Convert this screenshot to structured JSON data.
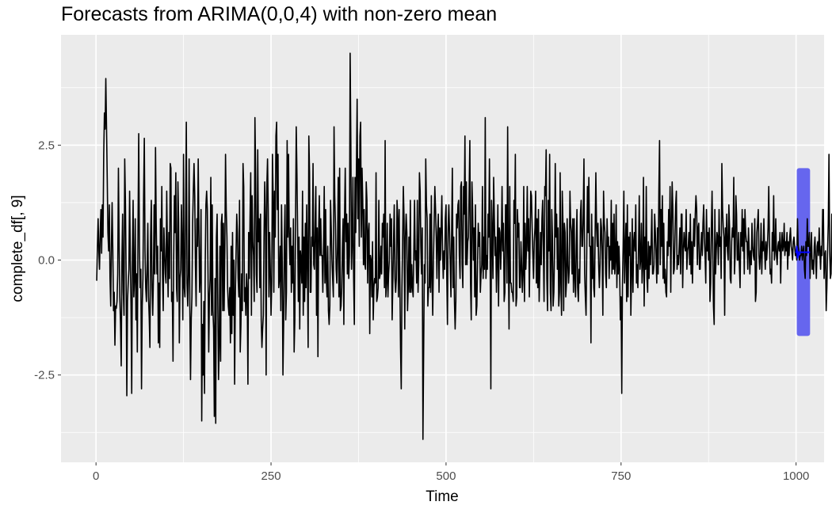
{
  "chart_data": {
    "type": "line",
    "title": "Forecasts from ARIMA(0,0,4) with non-zero mean",
    "xlabel": "Time",
    "ylabel": "complete_df[, 9]",
    "xlim": [
      -50,
      1040
    ],
    "ylim": [
      -4.4,
      4.9
    ],
    "x_ticks": [
      0,
      250,
      500,
      750,
      1000
    ],
    "x_tick_labels": [
      "0",
      "250",
      "500",
      "750",
      "1000"
    ],
    "y_ticks": [
      -2.5,
      0.0,
      2.5
    ],
    "y_tick_labels": [
      "-2.5",
      "0.0",
      "2.5"
    ],
    "grid": true,
    "legend": "none",
    "series": [
      {
        "role": "observed",
        "color": "#000000",
        "x_start": 1,
        "x_step": 1,
        "values": [
          -0.45,
          0.3,
          0.9,
          0.2,
          -0.2,
          0.6,
          1.1,
          0.15,
          1.2,
          0.5,
          2.3,
          3.2,
          2.85,
          3.95,
          2.9,
          1.8,
          0.6,
          0.2,
          1.2,
          -0.4,
          -1.0,
          0.3,
          1.25,
          0.2,
          -1.1,
          -0.7,
          -1.85,
          -1.0,
          -1.05,
          -0.9,
          -0.3,
          2.0,
          0.4,
          -0.8,
          -1.4,
          -2.3,
          0.0,
          1.0,
          -0.7,
          -1.2,
          2.2,
          1.3,
          -0.3,
          -2.95,
          -0.9,
          -0.5,
          -0.2,
          1.5,
          0.0,
          -1.0,
          -2.9,
          0.1,
          1.3,
          -0.8,
          -0.4,
          0.9,
          -1.3,
          -0.3,
          -2.0,
          0.7,
          2.75,
          0.3,
          -0.6,
          -0.2,
          -2.8,
          -1.0,
          -0.4,
          1.4,
          2.65,
          0.2,
          -0.6,
          -0.9,
          -0.2,
          0.8,
          -0.8,
          -1.25,
          -1.9,
          0.5,
          1.3,
          -0.6,
          -1.2,
          -0.4,
          1.2,
          -0.3,
          2.45,
          0.8,
          -0.3,
          0.3,
          -1.8,
          -0.5,
          -1.9,
          0.9,
          0.2,
          1.6,
          -0.3,
          -1.1,
          0.7,
          0.2,
          -0.3,
          -0.5,
          1.5,
          0.2,
          -0.8,
          0.6,
          -0.4,
          2.1,
          2.0,
          -0.9,
          -0.7,
          -2.2,
          0.1,
          1.4,
          0.6,
          1.9,
          -0.6,
          -0.9,
          1.7,
          0.9,
          -1.8,
          -0.4,
          -0.2,
          1.2,
          0.3,
          -1.3,
          2.3,
          -0.6,
          -0.8,
          0.9,
          3.0,
          -0.5,
          -1.0,
          -0.3,
          2.2,
          -1.0,
          -2.6,
          -1.3,
          -0.8,
          0.8,
          1.5,
          2.1,
          1.4,
          -0.1,
          -1.0,
          0.9,
          0.3,
          2.2,
          0.6,
          -0.7,
          -0.3,
          1.1,
          -3.5,
          -1.4,
          -2.5,
          -0.9,
          -2.9,
          -0.1,
          1.2,
          1.5,
          1.1,
          -0.3,
          -2.0,
          -0.8,
          -0.4,
          1.8,
          -1.2,
          1.2,
          -1.1,
          -1.5,
          -3.4,
          -0.4,
          -3.55,
          0.5,
          1.0,
          -1.0,
          -2.6,
          -1.9,
          0.3,
          -2.2,
          0.8,
          1.0,
          -1.1,
          0.8,
          -1.1,
          0.2,
          2.3,
          1.1,
          0.5,
          -0.6,
          -1.0,
          -1.2,
          -0.6,
          -1.8,
          0.3,
          -1.6,
          0.6,
          -1.2,
          0.0,
          -2.7,
          -0.8,
          0.1,
          1.0,
          0.6,
          -0.4,
          -0.8,
          1.3,
          -2.0,
          -1.4,
          -0.3,
          -1.1,
          2.1,
          1.6,
          -0.9,
          -0.6,
          -1.2,
          -0.3,
          -0.7,
          -2.7,
          0.6,
          -0.4,
          0.9,
          1.9,
          -1.2,
          1.4,
          0.4,
          0.1,
          -0.9,
          3.1,
          1.9,
          -0.3,
          -0.7,
          2.4,
          0.4,
          0.9,
          -0.6,
          1.0,
          -1.3,
          -1.9,
          -1.5,
          -1.2,
          0.5,
          1.7,
          0.9,
          -2.5,
          1.6,
          2.2,
          1.1,
          -0.8,
          0.6,
          -0.2,
          -1.2,
          -0.5,
          2.3,
          1.4,
          -0.7,
          1.5,
          0.5,
          2.7,
          3.0,
          1.1,
          2.3,
          -0.6,
          -0.4,
          0.3,
          -1.1,
          1.2,
          0.0,
          -2.5,
          -1.4,
          0.4,
          1.2,
          -1.3,
          -0.7,
          2.6,
          0.5,
          2.3,
          0.6,
          -0.1,
          0.7,
          -0.7,
          0.3,
          -0.5,
          0.9,
          -2.0,
          -1.3,
          0.8,
          2.9,
          1.9,
          0.6,
          -0.9,
          0.5,
          -1.5,
          0.2,
          0.0,
          -0.5,
          1.5,
          -1.2,
          0.5,
          -0.9,
          0.8,
          -0.6,
          1.2,
          -0.1,
          -1.9,
          2.7,
          1.9,
          -0.7,
          -0.7,
          0.5,
          0.3,
          2.1,
          -0.1,
          -0.2,
          0.8,
          1.6,
          -1.2,
          0.7,
          -2.1,
          0.6,
          1.4,
          0.1,
          0.9,
          0.1,
          0.1,
          -0.7,
          0.3,
          1.6,
          -0.5,
          1.1,
          -0.4,
          -0.8,
          0.3,
          -1.1,
          -1.4,
          -1.0,
          1.3,
          0.7,
          0.0,
          -0.4,
          -0.8,
          2.9,
          1.4,
          0.8,
          -0.2,
          -0.5,
          0.3,
          1.8,
          -0.8,
          2.0,
          -1.1,
          -1.0,
          -0.6,
          0.3,
          0.9,
          -1.4,
          0.9,
          2.0,
          0.4,
          1.0,
          -0.3,
          0.8,
          -0.4,
          0.1,
          4.5,
          2.6,
          -0.2,
          0.4,
          1.8,
          -0.4,
          -1.4,
          1.8,
          0.6,
          2.0,
          3.5,
          0.9,
          2.2,
          0.3,
          2.7,
          3.0,
          0.5,
          2.0,
          1.3,
          -0.1,
          1.1,
          -0.1,
          -0.2,
          1.7,
          1.3,
          -0.5,
          0.6,
          0.8,
          -1.6,
          0.1,
          0.0,
          -0.8,
          0.4,
          -1.3,
          -0.6,
          -0.4,
          -0.5,
          1.9,
          -0.9,
          -0.8,
          -0.6,
          1.3,
          -0.4,
          -0.3,
          0.3,
          -0.3,
          0.8,
          0.5,
          1.0,
          -0.6,
          2.6,
          -0.8,
          -0.5,
          0.8,
          -0.8,
          -0.3,
          0.0,
          1.0,
          0.3,
          0.9,
          -1.3,
          -0.5,
          0.4,
          1.2,
          -0.4,
          -0.7,
          -0.4,
          1.3,
          0.9,
          -0.8,
          1.1,
          -0.4,
          -1.9,
          -2.8,
          -0.6,
          0.4,
          1.6,
          0.9,
          -1.5,
          0.5,
          1.0,
          0.6,
          -1.1,
          -0.6,
          0.5,
          -0.7,
          1.3,
          -0.7,
          -0.1,
          -0.6,
          -0.8,
          0.2,
          1.3,
          0.0,
          0.2,
          -0.5,
          1.3,
          -0.7,
          -0.1,
          1.9,
          1.5,
          0.3,
          -0.3,
          0.7,
          -3.9,
          -2.0,
          -0.1,
          -0.5,
          2.2,
          1.2,
          0.9,
          -1.0,
          -0.6,
          -0.6,
          1.0,
          -0.7,
          1.4,
          -0.4,
          -1.2,
          0.0,
          0.8,
          1.6,
          1.1,
          0.5,
          -0.4,
          0.6,
          1.0,
          -0.7,
          0.7,
          0.0,
          0.7,
          1.4,
          0.2,
          -0.4,
          0.2,
          -0.2,
          0.9,
          1.2,
          -0.3,
          -1.4,
          0.7,
          1.2,
          0.6,
          -0.1,
          -0.8,
          0.6,
          2.0,
          -0.6,
          0.5,
          -0.9,
          -1.5,
          -0.9,
          1.0,
          0.7,
          1.2,
          1.3,
          0.1,
          -0.4,
          1.6,
          1.7,
          -0.1,
          -0.6,
          1.6,
          1.0,
          2.7,
          -0.1,
          1.7,
          -0.1,
          0.4,
          0.5,
          1.5,
          2.6,
          -0.5,
          -1.3,
          1.7,
          1.1,
          0.0,
          0.7,
          -0.8,
          1.2,
          -1.2,
          -1.0,
          -0.1,
          0.8,
          0.3,
          0.6,
          -0.7,
          -0.3,
          -0.1,
          1.6,
          -0.4,
          0.5,
          -0.2,
          3.1,
          -0.4,
          0.1,
          -0.2,
          1.0,
          0.5,
          2.2,
          0.0,
          -2.8,
          1.3,
          0.6,
          -0.4,
          1.8,
          0.9,
          0.1,
          0.5,
          -0.7,
          0.0,
          1.2,
          -1.0,
          0.7,
          0.6,
          -0.2,
          0.4,
          1.6,
          0.2,
          0.8,
          -0.9,
          -0.7,
          1.2,
          1.2,
          -0.5,
          2.9,
          0.2,
          -1.5,
          1.6,
          -0.5,
          -0.5,
          -0.7,
          -0.7,
          -0.9,
          1.3,
          0.8,
          2.3,
          -1.0,
          -0.8,
          1.1,
          0.5,
          0.8,
          -0.6,
          -0.6,
          0.4,
          -0.1,
          -0.7,
          -0.3,
          1.6,
          -0.9,
          0.8,
          -0.2,
          0.3,
          1.6,
          0.2,
          0.9,
          -0.8,
          0.4,
          1.5,
          1.4,
          0.7,
          0.1,
          -0.4,
          0.4,
          0.7,
          1.5,
          -0.5,
          0.9,
          -0.6,
          1.1,
          -0.9,
          -0.2,
          0.6,
          -0.1,
          0.9,
          1.3,
          0.3,
          -0.9,
          1.6,
          1.4,
          2.4,
          -0.4,
          -1.1,
          1.3,
          0.2,
          2.3,
          -0.7,
          -1.1,
          1.1,
          0.5,
          -1.0,
          -0.7,
          0.2,
          2.1,
          0.5,
          1.0,
          -0.2,
          0.7,
          -1.0,
          -0.7,
          1.9,
          -0.5,
          -1.2,
          1.5,
          0.8,
          -1.1,
          0.8,
          0.6,
          -0.8,
          -0.5,
          0.9,
          -0.1,
          -0.5,
          -0.2,
          1.5,
          0.8,
          0.6,
          -0.3,
          0.9,
          -0.7,
          0.9,
          -0.4,
          -0.8,
          0.3,
          1.1,
          -0.6,
          -0.9,
          -0.2,
          -0.5,
          1.0,
          1.3,
          0.3,
          0.3,
          1.0,
          2.2,
          -0.3,
          -0.8,
          -1.2,
          0.2,
          1.6,
          0.6,
          1.8,
          0.3,
          0.3,
          -1.8,
          1.0,
          -0.4,
          0.5,
          -0.6,
          -0.8,
          0.6,
          1.9,
          0.7,
          0.3,
          0.8,
          -0.1,
          -0.6,
          -0.1,
          0.9,
          0.7,
          0.1,
          -1.2,
          1.5,
          0.8,
          0.6,
          -0.3,
          -0.6,
          0.9,
          0.3,
          0.5,
          -0.4,
          0.3,
          0.0,
          1.3,
          -0.3,
          0.8,
          -0.2,
          1.0,
          -0.3,
          0.0,
          1.2,
          -0.6,
          0.4,
          -0.3,
          0.3,
          -0.2,
          -1.3,
          -0.8,
          -2.9,
          -0.5,
          0.3,
          1.5,
          -0.5,
          0.2,
          0.8,
          -0.9,
          1.2,
          -0.8,
          0.5,
          0.1,
          0.6,
          -1.2,
          -0.3,
          0.9,
          -0.7,
          0.4,
          0.6,
          0.2,
          1.2,
          -0.5,
          -0.1,
          -0.6,
          0.3,
          1.4,
          -0.2,
          0.0,
          0.8,
          -0.5,
          -0.1,
          1.8,
          -1.0,
          0.5,
          -0.2,
          1.6,
          -0.4,
          -0.7,
          0.4,
          -0.4,
          0.3,
          -0.1,
          0.4,
          1.1,
          -0.3,
          -0.3,
          -0.1,
          1.0,
          0.6,
          0.1,
          -0.5,
          0.7,
          -0.3,
          1.5,
          2.6,
          -0.1,
          1.1,
          0.3,
          1.4,
          -0.4,
          0.8,
          -0.5,
          -0.2,
          -0.7,
          -0.8,
          0.4,
          0.1,
          1.1,
          0.3,
          1.6,
          -0.7,
          0.7,
          1.7,
          1.1,
          -0.3,
          -0.2,
          0.5,
          1.2,
          1.5,
          -0.2,
          0.1,
          -0.1,
          0.3,
          0.7,
          -0.3,
          1.0,
          1.0,
          -0.6,
          0.2,
          0.6,
          0.3,
          0.2,
          1.1,
          -0.2,
          0.2,
          0.3,
          0.6,
          -0.1,
          1.0,
          -0.3,
          0.4,
          -0.5,
          0.3,
          0.9,
          0.3,
          1.0,
          1.4,
          1.1,
          -0.1,
          0.7,
          0.8,
          -0.2,
          -0.2,
          0.3,
          0.6,
          0.1,
          0.8,
          1.2,
          0.5,
          0.1,
          -0.5,
          1.1,
          0.2,
          0.6,
          0.0,
          0.7,
          -0.9,
          -0.5,
          0.7,
          1.5,
          0.3,
          -1.0,
          -1.4,
          1.1,
          -0.3,
          0.2,
          0.6,
          0.5,
          -0.1,
          1.1,
          0.3,
          0.5,
          -0.4,
          2.1,
          1.1,
          0.7,
          0.5,
          -1.2,
          0.7,
          0.3,
          1.0,
          0.2,
          0.0,
          1.2,
          0.7,
          -0.4,
          -0.5,
          0.4,
          0.7,
          0.5,
          1.8,
          -0.3,
          0.1,
          1.4,
          1.0,
          0.0,
          0.0,
          0.6,
          -0.1,
          -0.6,
          0.6,
          0.3,
          1.1,
          0.2,
          0.9,
          -0.3,
          1.1,
          0.6,
          0.4,
          0.4,
          -0.2,
          0.7,
          0.2,
          -0.3,
          0.2,
          -0.1,
          0.8,
          0.3,
          0.1,
          0.0,
          0.9,
          -0.9,
          -0.7,
          0.6,
          0.8,
          1.1,
          0.1,
          -0.2,
          0.1,
          0.8,
          -0.3,
          0.4,
          0.2,
          0.9,
          0.2,
          -0.2,
          0.4,
          0.0,
          0.3,
          0.7,
          1.6,
          0.4,
          -0.3,
          -0.2,
          -0.5,
          0.6,
          0.2,
          1.4,
          0.0,
          0.2,
          0.9,
          0.1,
          -0.1,
          0.3,
          0.4,
          0.2,
          0.6,
          -0.5,
          0.3,
          0.6,
          0.2,
          0.3,
          0.8,
          0.1,
          0.4,
          0.2,
          0.6,
          -0.2,
          0.4,
          0.1,
          0.5,
          0.7,
          0.3,
          0.2,
          0.0,
          0.4,
          0.5,
          0.3,
          0.1,
          0.2,
          0.0,
          0.9,
          0.3,
          0.2,
          0.0,
          0.1,
          0.1,
          0.3,
          0.0,
          0.2,
          0.3,
          -0.2,
          -0.4,
          0.4,
          0.1,
          0.9,
          0.3,
          0.3,
          0.6,
          -0.4,
          0.2,
          0.6,
          -0.2,
          0.0,
          -0.3,
          0.3,
          0.5,
          0.0,
          -0.4,
          0.3,
          0.4,
          0.1,
          0.7,
          0.2,
          -0.2,
          0.3,
          0.1,
          1.1,
          1.1,
          -0.4,
          0.1,
          0.2,
          -1.1,
          -0.6,
          0.2,
          0.8,
          2.3,
          0.2,
          -0.4,
          -0.3,
          1.0,
          0.1,
          -1.0,
          -0.5,
          0.3,
          1.2,
          1.2
        ]
      },
      {
        "role": "forecast-mean",
        "color": "#0000ff",
        "x": [
          1000,
          1001,
          1002,
          1003,
          1004,
          1005,
          1010,
          1015,
          1020
        ],
        "values": [
          0.15,
          0.3,
          0.05,
          0.18,
          0.1,
          0.17,
          0.17,
          0.17,
          0.17
        ]
      }
    ],
    "interval": {
      "role": "prediction-interval",
      "color": "#6666ee",
      "x": [
        1001,
        1020
      ],
      "lower": -1.65,
      "upper": 2.0
    }
  }
}
